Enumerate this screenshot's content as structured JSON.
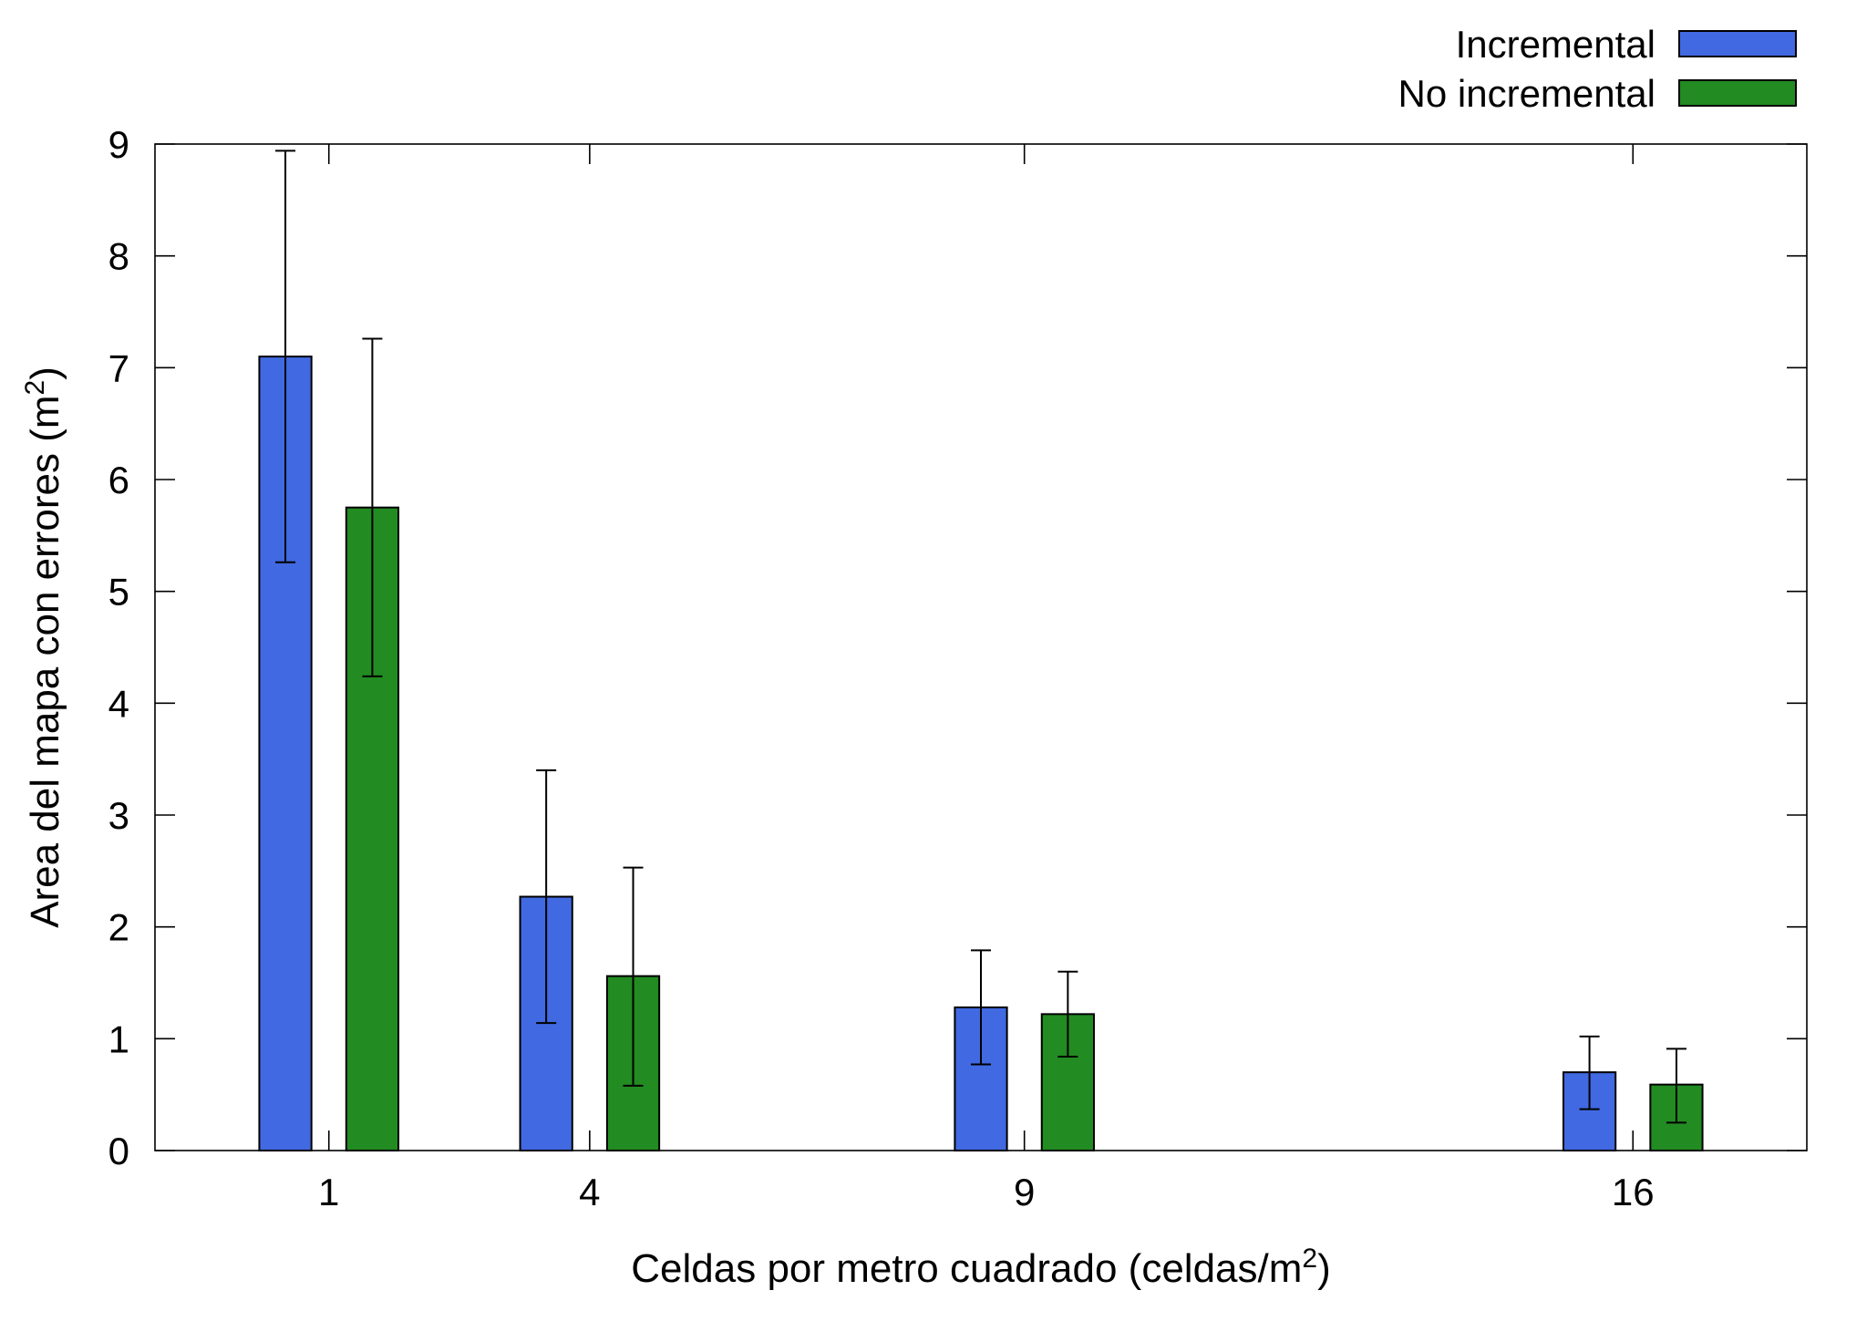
{
  "chart_data": {
    "type": "bar",
    "categories": [
      "1",
      "4",
      "9",
      "16"
    ],
    "x": [
      1,
      4,
      9,
      16
    ],
    "series": [
      {
        "name": "Incremental",
        "color": "#4169e1",
        "values": [
          7.1,
          2.27,
          1.28,
          0.7
        ],
        "err_low": [
          5.26,
          1.14,
          0.77,
          0.37
        ],
        "err_high": [
          8.94,
          3.4,
          1.79,
          1.02
        ]
      },
      {
        "name": "No incremental",
        "color": "#228b22",
        "values": [
          5.75,
          1.56,
          1.22,
          0.59
        ],
        "err_low": [
          4.24,
          0.58,
          0.84,
          0.25
        ],
        "err_high": [
          7.26,
          2.53,
          1.6,
          0.91
        ]
      }
    ],
    "xlabel": "Celdas por metro cuadrado (celdas/m",
    "xlabel_sup": "2",
    "xlabel_close": ")",
    "ylabel": "Area del mapa con errores (m",
    "ylabel_sup": "2",
    "ylabel_close": ")",
    "ylim": [
      0,
      9
    ],
    "xlim": [
      -1,
      18
    ],
    "yticks": [
      "0",
      "1",
      "2",
      "3",
      "4",
      "5",
      "6",
      "7",
      "8",
      "9"
    ],
    "legend_position": "top-right",
    "grid": false
  }
}
